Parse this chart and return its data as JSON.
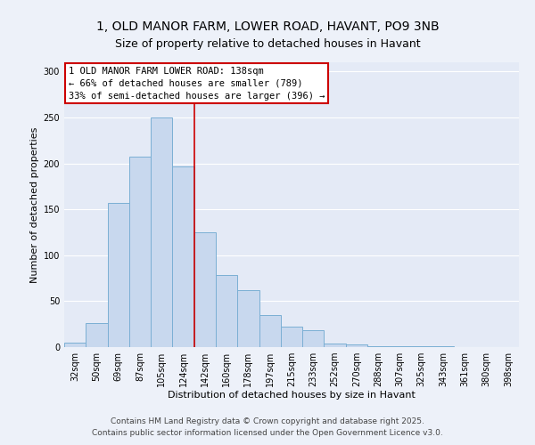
{
  "title1": "1, OLD MANOR FARM, LOWER ROAD, HAVANT, PO9 3NB",
  "title2": "Size of property relative to detached houses in Havant",
  "xlabel": "Distribution of detached houses by size in Havant",
  "ylabel": "Number of detached properties",
  "bar_labels": [
    "32sqm",
    "50sqm",
    "69sqm",
    "87sqm",
    "105sqm",
    "124sqm",
    "142sqm",
    "160sqm",
    "178sqm",
    "197sqm",
    "215sqm",
    "233sqm",
    "252sqm",
    "270sqm",
    "288sqm",
    "307sqm",
    "325sqm",
    "343sqm",
    "361sqm",
    "380sqm",
    "398sqm"
  ],
  "bar_values": [
    5,
    26,
    157,
    207,
    250,
    197,
    125,
    78,
    62,
    35,
    22,
    18,
    4,
    3,
    1,
    1,
    1,
    1,
    0,
    0,
    0
  ],
  "bar_color": "#c8d8ee",
  "bar_edge_color": "#7bafd4",
  "ylim": [
    0,
    310
  ],
  "yticks": [
    0,
    50,
    100,
    150,
    200,
    250,
    300
  ],
  "vline_x": 5.5,
  "vline_color": "#cc0000",
  "annotation_line1": "1 OLD MANOR FARM LOWER ROAD: 138sqm",
  "annotation_line2": "← 66% of detached houses are smaller (789)",
  "annotation_line3": "33% of semi-detached houses are larger (396) →",
  "annotation_box_facecolor": "#ffffff",
  "annotation_box_edgecolor": "#cc0000",
  "footer1": "Contains HM Land Registry data © Crown copyright and database right 2025.",
  "footer2": "Contains public sector information licensed under the Open Government Licence v3.0.",
  "bg_color": "#edf1f9",
  "plot_bg_color": "#e4eaf6",
  "grid_color": "#ffffff",
  "title_fontsize": 10,
  "subtitle_fontsize": 9,
  "axis_label_fontsize": 8,
  "tick_fontsize": 7,
  "annot_fontsize": 7.5,
  "footer_fontsize": 6.5
}
